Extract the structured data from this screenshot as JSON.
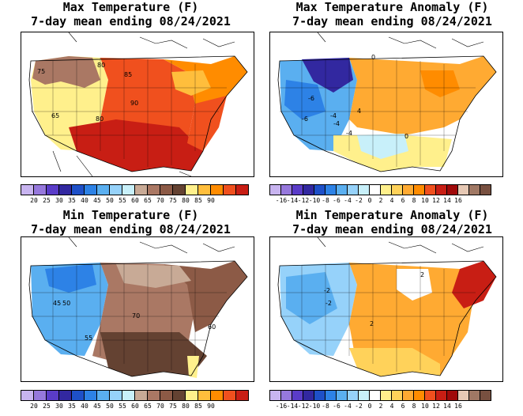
{
  "panels": [
    {
      "id": "max-temp",
      "title_line1": "Max Temperature (F)",
      "title_line2": "7-day mean ending 08/24/2021",
      "colorbar_colors": [
        "#c8b4f0",
        "#9678dc",
        "#5a3cc8",
        "#3228a0",
        "#1e50c8",
        "#2d82e6",
        "#5aaff0",
        "#96d2fa",
        "#c8f0fa",
        "#c8aa96",
        "#aa7864",
        "#8c5a46",
        "#644232",
        "#fff08c",
        "#ffbe3c",
        "#ff8c00",
        "#f0501e",
        "#c81e14"
      ],
      "colorbar_labels": [
        "20",
        "25",
        "30",
        "35",
        "40",
        "45",
        "50",
        "55",
        "60",
        "65",
        "70",
        "75",
        "80",
        "85",
        "90"
      ],
      "contour_labels": [
        "75",
        "85",
        "90",
        "80",
        "65",
        "80"
      ]
    },
    {
      "id": "max-anom",
      "title_line1": "Max Temperature Anomaly (F)",
      "title_line2": "7-day mean ending 08/24/2021",
      "colorbar_colors": [
        "#c8b4f0",
        "#9678dc",
        "#5a3cc8",
        "#3228a0",
        "#1e50c8",
        "#2d82e6",
        "#5aaff0",
        "#96d2fa",
        "#c8f0fa",
        "#ffffff",
        "#fff08c",
        "#ffd25a",
        "#ffaa32",
        "#ff8c00",
        "#f0501e",
        "#c81e14",
        "#a00a0a",
        "#e6c8b4",
        "#a07864",
        "#785040"
      ],
      "colorbar_labels": [
        "-16",
        "-14",
        "-12",
        "-10",
        "-8",
        "-6",
        "-4",
        "-2",
        "0",
        "2",
        "4",
        "6",
        "8",
        "10",
        "12",
        "14",
        "16"
      ],
      "contour_labels": [
        "-6",
        "-6",
        "-4",
        "-4",
        "0",
        "0",
        "-4",
        "4"
      ]
    },
    {
      "id": "min-temp",
      "title_line1": "Min Temperature (F)",
      "title_line2": "7-day mean ending 08/24/2021",
      "colorbar_colors": [
        "#c8b4f0",
        "#9678dc",
        "#5a3cc8",
        "#3228a0",
        "#1e50c8",
        "#2d82e6",
        "#5aaff0",
        "#96d2fa",
        "#c8f0fa",
        "#c8aa96",
        "#aa7864",
        "#8c5a46",
        "#644232",
        "#fff08c",
        "#ffbe3c",
        "#ff8c00",
        "#f0501e",
        "#c81e14"
      ],
      "colorbar_labels": [
        "20",
        "25",
        "30",
        "35",
        "40",
        "45",
        "50",
        "55",
        "60",
        "65",
        "70",
        "75",
        "80",
        "85",
        "90"
      ],
      "contour_labels": [
        "45",
        "50",
        "70",
        "55",
        "60"
      ]
    },
    {
      "id": "min-anom",
      "title_line1": "Min Temperature Anomaly (F)",
      "title_line2": "7-day mean ending 08/24/2021",
      "colorbar_colors": [
        "#c8b4f0",
        "#9678dc",
        "#5a3cc8",
        "#3228a0",
        "#1e50c8",
        "#2d82e6",
        "#5aaff0",
        "#96d2fa",
        "#c8f0fa",
        "#ffffff",
        "#fff08c",
        "#ffd25a",
        "#ffaa32",
        "#ff8c00",
        "#f0501e",
        "#c81e14",
        "#a00a0a",
        "#e6c8b4",
        "#a07864",
        "#785040"
      ],
      "colorbar_labels": [
        "-16",
        "-14",
        "-12",
        "-10",
        "-8",
        "-6",
        "-4",
        "-2",
        "0",
        "2",
        "4",
        "6",
        "8",
        "10",
        "12",
        "14",
        "16"
      ],
      "contour_labels": [
        "-2",
        "-2",
        "2",
        "2"
      ]
    }
  ]
}
